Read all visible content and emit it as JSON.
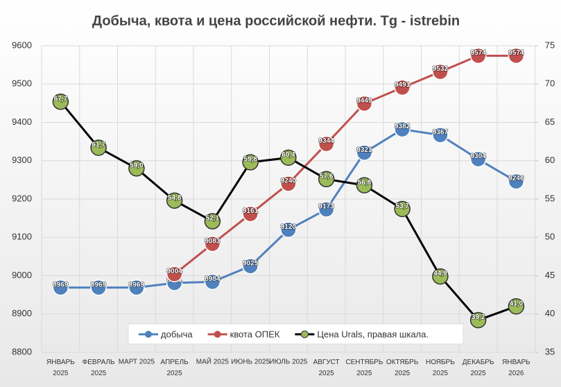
{
  "chart_data": {
    "type": "line",
    "title": "Добыча, квота и цена российской нефти. Tg - istrebin",
    "categories": [
      "ЯНВАРЬ 2025",
      "ФЕВРАЛЬ 2025",
      "МАРТ 2025",
      "АПРЕЛЬ 2025",
      "МАЙ 2025",
      "ИЮНЬ 2025",
      "ИЮЛЬ 2025",
      "АВГУСТ 2025",
      "СЕНТЯБРЬ 2025",
      "ОКТЯБРЬ 2025",
      "НОЯБРЬ 2025",
      "ДЕКАБРЬ 2025",
      "ЯНВАРЬ 2026"
    ],
    "series": [
      {
        "name": "добыча",
        "color": "#4f81bd",
        "values": [
          8969,
          8969,
          8969,
          8981,
          8984,
          9025,
          9120,
          9173,
          9321,
          9382,
          9367,
          9304,
          9246
        ]
      },
      {
        "name": "квота ОПЕК",
        "color": "#c0504d",
        "values": [
          null,
          null,
          null,
          9004,
          9083,
          9161,
          9240,
          9344,
          9449,
          9491,
          9532,
          9574,
          9574
        ]
      },
      {
        "name": "Цена Urals, правая шкала.",
        "color": "#000000",
        "marker_color": "#9bbb59",
        "axis": "y2",
        "values": [
          67.7,
          61.7,
          59.0,
          54.8,
          52.1,
          59.8,
          60.4,
          57.6,
          56.8,
          53.7,
          44.9,
          39.2,
          41.0
        ],
        "value_labels": [
          "67,7",
          "61,7",
          "59,0",
          "54,8",
          "52,1",
          "59,8",
          "60,4",
          "57,6",
          "56,8",
          "53,7",
          "44,9",
          "39,2",
          "41,0"
        ]
      }
    ],
    "ylim": [
      8800,
      9600
    ],
    "yticks": [
      8800,
      8900,
      9000,
      9100,
      9200,
      9300,
      9400,
      9500,
      9600
    ],
    "y2lim": [
      35,
      75
    ],
    "y2ticks": [
      35,
      40,
      45,
      50,
      55,
      60,
      65,
      70,
      75
    ],
    "grid": true,
    "legend": "bottom"
  }
}
